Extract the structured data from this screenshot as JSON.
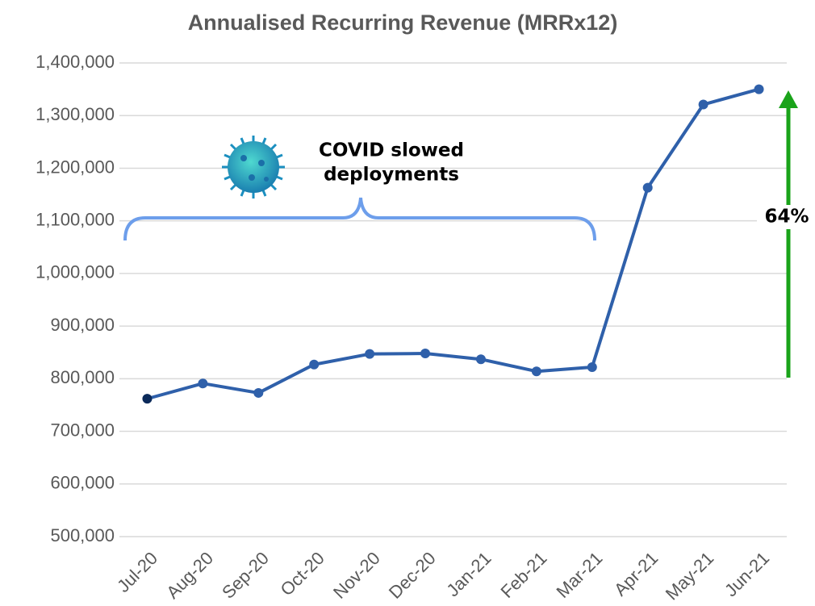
{
  "chart_data": {
    "type": "line",
    "title": "Annualised Recurring Revenue (MRRx12)",
    "categories": [
      "Jul-20",
      "Aug-20",
      "Sep-20",
      "Oct-20",
      "Nov-20",
      "Dec-20",
      "Jan-21",
      "Feb-21",
      "Mar-21",
      "Apr-21",
      "May-21",
      "Jun-21"
    ],
    "series": [
      {
        "color": "#2f60aa",
        "values": [
          762000,
          791000,
          773000,
          827000,
          847000,
          848000,
          837000,
          814000,
          822000,
          1163000,
          1321000,
          1350000
        ]
      }
    ],
    "start_marker_color": "#0b2a5a",
    "ylim": [
      500000,
      1400000
    ],
    "yticks": [
      {
        "value": 500000,
        "label": "500,000"
      },
      {
        "value": 600000,
        "label": "600,000"
      },
      {
        "value": 700000,
        "label": "700,000"
      },
      {
        "value": 800000,
        "label": "800,000"
      },
      {
        "value": 900000,
        "label": "900,000"
      },
      {
        "value": 1000000,
        "label": "1,000,000"
      },
      {
        "value": 1100000,
        "label": "1,100,000"
      },
      {
        "value": 1200000,
        "label": "1,200,000"
      },
      {
        "value": 1300000,
        "label": "1,300,000"
      },
      {
        "value": 1400000,
        "label": "1,400,000"
      }
    ],
    "grid": true,
    "annotation_lines": [
      "COVID slowed",
      "deployments"
    ],
    "change_label": "64%"
  }
}
